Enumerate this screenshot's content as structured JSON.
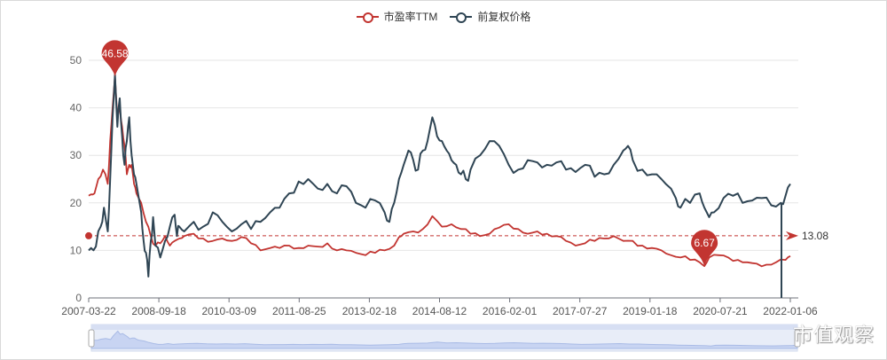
{
  "legend": [
    {
      "label": "市盈率TTM",
      "color": "#c23531"
    },
    {
      "label": "前复权价格",
      "color": "#2f4554"
    }
  ],
  "watermark": "市值观察",
  "markers": {
    "max": {
      "value": "46.58",
      "color": "#c23531"
    },
    "min": {
      "value": "6.67",
      "color": "#c23531"
    },
    "avg": {
      "value": "13.08",
      "color": "#c23531"
    }
  },
  "chart_data": {
    "type": "line",
    "title": "",
    "xlabel": "",
    "ylabel": "",
    "ylim": [
      0,
      50
    ],
    "yticks": [
      0,
      10,
      20,
      30,
      40,
      50
    ],
    "xticks": [
      "2007-03-22",
      "2008-09-18",
      "2010-03-09",
      "2011-08-25",
      "2013-02-18",
      "2014-08-12",
      "2016-02-01",
      "2017-07-27",
      "2019-01-18",
      "2020-07-21",
      "2022-01-06"
    ],
    "grid": true,
    "legend_position": "top",
    "annotations": [
      {
        "type": "max",
        "series": "市盈率TTM",
        "value": 46.58,
        "x": "2007-10"
      },
      {
        "type": "min",
        "series": "市盈率TTM",
        "value": 6.67,
        "x": "2021-02"
      },
      {
        "type": "average",
        "series": "市盈率TTM",
        "value": 13.08
      }
    ],
    "series": [
      {
        "name": "市盈率TTM",
        "color": "#c23531",
        "points": [
          [
            0,
            21.5
          ],
          [
            0.05,
            21.8
          ],
          [
            0.12,
            22
          ],
          [
            0.2,
            25
          ],
          [
            0.3,
            27
          ],
          [
            0.4,
            24
          ],
          [
            0.45,
            33
          ],
          [
            0.5,
            40
          ],
          [
            0.55,
            46.58
          ],
          [
            0.6,
            38
          ],
          [
            0.65,
            40
          ],
          [
            0.7,
            36
          ],
          [
            0.75,
            32
          ],
          [
            0.8,
            26
          ],
          [
            0.85,
            28
          ],
          [
            0.9,
            28
          ],
          [
            0.95,
            24
          ],
          [
            1.0,
            22
          ],
          [
            1.1,
            20
          ],
          [
            1.2,
            16
          ],
          [
            1.3,
            13
          ],
          [
            1.4,
            11
          ],
          [
            1.5,
            11.5
          ],
          [
            1.6,
            13
          ],
          [
            1.7,
            11
          ],
          [
            1.8,
            12
          ],
          [
            1.9,
            12.5
          ],
          [
            2.0,
            13
          ],
          [
            2.2,
            13.5
          ],
          [
            2.4,
            12.5
          ],
          [
            2.6,
            12
          ],
          [
            2.8,
            12.5
          ],
          [
            3.0,
            12
          ],
          [
            3.2,
            12.8
          ],
          [
            3.4,
            11.5
          ],
          [
            3.6,
            10
          ],
          [
            3.8,
            10.5
          ],
          [
            4.0,
            10.5
          ],
          [
            4.2,
            11
          ],
          [
            4.4,
            10.5
          ],
          [
            4.6,
            11
          ],
          [
            4.8,
            10.8
          ],
          [
            5.0,
            11.5
          ],
          [
            5.2,
            10
          ],
          [
            5.4,
            10
          ],
          [
            5.6,
            9.5
          ],
          [
            5.8,
            9
          ],
          [
            6.0,
            9.5
          ],
          [
            6.2,
            10
          ],
          [
            6.4,
            11
          ],
          [
            6.5,
            12.8
          ],
          [
            6.6,
            13.5
          ],
          [
            6.8,
            14
          ],
          [
            7.0,
            14.5
          ],
          [
            7.2,
            17.2
          ],
          [
            7.4,
            15
          ],
          [
            7.6,
            15.5
          ],
          [
            7.8,
            14.5
          ],
          [
            8.0,
            13.5
          ],
          [
            8.2,
            13
          ],
          [
            8.4,
            13.5
          ],
          [
            8.6,
            14.8
          ],
          [
            8.8,
            15.5
          ],
          [
            9.0,
            14.5
          ],
          [
            9.2,
            13.5
          ],
          [
            9.4,
            14
          ],
          [
            9.6,
            13.5
          ],
          [
            9.8,
            13
          ],
          [
            10.0,
            12
          ],
          [
            10.2,
            11
          ],
          [
            10.4,
            11.5
          ],
          [
            10.6,
            12
          ],
          [
            10.8,
            12.5
          ],
          [
            11.0,
            13
          ],
          [
            11.2,
            12
          ],
          [
            11.4,
            12
          ],
          [
            11.6,
            11
          ],
          [
            11.8,
            10.5
          ],
          [
            12.0,
            10
          ],
          [
            12.2,
            9
          ],
          [
            12.4,
            8.5
          ],
          [
            12.6,
            8
          ],
          [
            12.8,
            7.5
          ],
          [
            12.9,
            6.67
          ],
          [
            13.0,
            8.5
          ],
          [
            13.2,
            9
          ],
          [
            13.4,
            8.5
          ],
          [
            13.6,
            8
          ],
          [
            13.8,
            7.5
          ],
          [
            14.0,
            7.2
          ],
          [
            14.2,
            7
          ],
          [
            14.4,
            7.5
          ],
          [
            14.6,
            8
          ],
          [
            14.7,
            8.8
          ]
        ]
      },
      {
        "name": "前复权价格",
        "color": "#2f4554",
        "points": [
          [
            0,
            10
          ],
          [
            0.05,
            10.5
          ],
          [
            0.15,
            10.8
          ],
          [
            0.25,
            15
          ],
          [
            0.32,
            19
          ],
          [
            0.4,
            14
          ],
          [
            0.45,
            25
          ],
          [
            0.5,
            38
          ],
          [
            0.55,
            47
          ],
          [
            0.6,
            36
          ],
          [
            0.65,
            42
          ],
          [
            0.7,
            34
          ],
          [
            0.75,
            28
          ],
          [
            0.8,
            33
          ],
          [
            0.85,
            38
          ],
          [
            0.9,
            30
          ],
          [
            0.95,
            26
          ],
          [
            1.0,
            24
          ],
          [
            1.1,
            18
          ],
          [
            1.15,
            12
          ],
          [
            1.2,
            9.5
          ],
          [
            1.25,
            4.5
          ],
          [
            1.3,
            12
          ],
          [
            1.35,
            17
          ],
          [
            1.4,
            11
          ],
          [
            1.5,
            8.5
          ],
          [
            1.6,
            12
          ],
          [
            1.7,
            15
          ],
          [
            1.8,
            17.5
          ],
          [
            1.85,
            13
          ],
          [
            1.9,
            15
          ],
          [
            2.0,
            14
          ],
          [
            2.2,
            16
          ],
          [
            2.4,
            15
          ],
          [
            2.6,
            18
          ],
          [
            2.8,
            16
          ],
          [
            3.0,
            14
          ],
          [
            3.2,
            15.5
          ],
          [
            3.4,
            14.5
          ],
          [
            3.6,
            16
          ],
          [
            3.8,
            18
          ],
          [
            4.0,
            19
          ],
          [
            4.2,
            22
          ],
          [
            4.4,
            24.5
          ],
          [
            4.6,
            25
          ],
          [
            4.8,
            23
          ],
          [
            5.0,
            24
          ],
          [
            5.2,
            22
          ],
          [
            5.4,
            23.5
          ],
          [
            5.6,
            20
          ],
          [
            5.8,
            19
          ],
          [
            6.0,
            20.5
          ],
          [
            6.2,
            18
          ],
          [
            6.3,
            16
          ],
          [
            6.4,
            20
          ],
          [
            6.5,
            25
          ],
          [
            6.6,
            28
          ],
          [
            6.7,
            31
          ],
          [
            6.8,
            29
          ],
          [
            6.9,
            27
          ],
          [
            7.0,
            31
          ],
          [
            7.1,
            33
          ],
          [
            7.2,
            38
          ],
          [
            7.3,
            34
          ],
          [
            7.4,
            33
          ],
          [
            7.5,
            31
          ],
          [
            7.6,
            29
          ],
          [
            7.7,
            28
          ],
          [
            7.8,
            26
          ],
          [
            7.9,
            25
          ],
          [
            8.0,
            27
          ],
          [
            8.2,
            30
          ],
          [
            8.4,
            33
          ],
          [
            8.6,
            32
          ],
          [
            8.8,
            28
          ],
          [
            9.0,
            27
          ],
          [
            9.2,
            29
          ],
          [
            9.4,
            28.5
          ],
          [
            9.6,
            28
          ],
          [
            9.8,
            28.5
          ],
          [
            10.0,
            27
          ],
          [
            10.2,
            26.5
          ],
          [
            10.4,
            28
          ],
          [
            10.6,
            25.5
          ],
          [
            10.8,
            26
          ],
          [
            11.0,
            28
          ],
          [
            11.2,
            31
          ],
          [
            11.3,
            32
          ],
          [
            11.4,
            29
          ],
          [
            11.6,
            27
          ],
          [
            11.8,
            26
          ],
          [
            12.0,
            25
          ],
          [
            12.2,
            23
          ],
          [
            12.3,
            21
          ],
          [
            12.4,
            19
          ],
          [
            12.6,
            20
          ],
          [
            12.8,
            22
          ],
          [
            12.9,
            19
          ],
          [
            13.0,
            17
          ],
          [
            13.1,
            18
          ],
          [
            13.3,
            21
          ],
          [
            13.5,
            21.5
          ],
          [
            13.7,
            20
          ],
          [
            13.9,
            20.5
          ],
          [
            14.1,
            21
          ],
          [
            14.3,
            19.5
          ],
          [
            14.5,
            20
          ],
          [
            14.6,
            21.5
          ],
          [
            14.7,
            24
          ]
        ]
      }
    ]
  }
}
